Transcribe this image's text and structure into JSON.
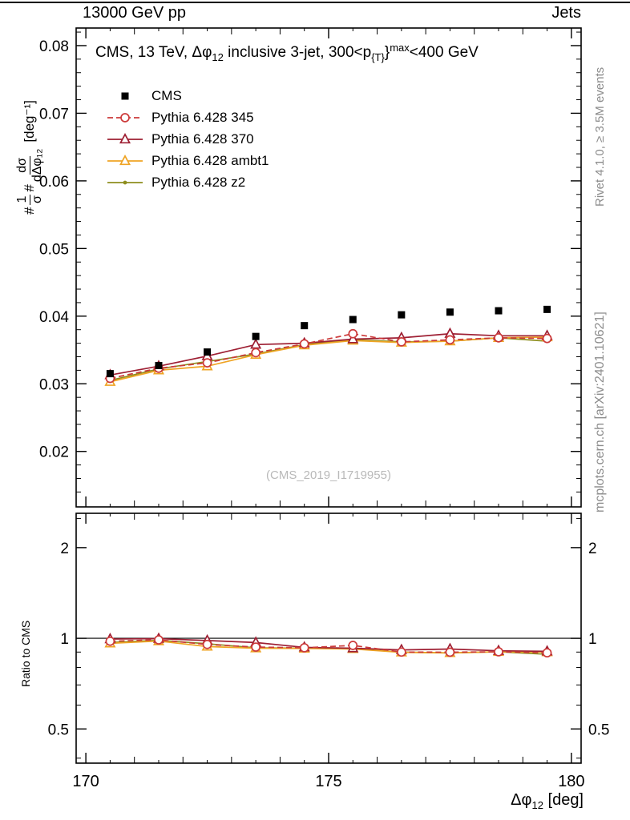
{
  "header": {
    "left": "13000 GeV pp",
    "right": "Jets"
  },
  "title": {
    "p1": "CMS, 13 TeV, ",
    "p2": "Δφ",
    "sub1": "12",
    "p3": " inclusive 3-jet, 300<p",
    "sub2": "{T}",
    "p4": "}",
    "sup": "max",
    "p5": "<400 GeV"
  },
  "ylabel": {
    "hash1": "#",
    "f1num": "1",
    "f1den": "σ",
    "hash2": "#",
    "f2num": "dσ",
    "f2den": "dΔφ₁₂",
    "unit": "[deg⁻¹]"
  },
  "xlabel": {
    "main": "Δφ",
    "sub": "12",
    "unit": " [deg]"
  },
  "ratio_label": "Ratio to CMS",
  "watermark": "(CMS_2019_I1719955)",
  "side": {
    "rivet": "Rivet 4.1.0, ≥ 3.5M events",
    "mcplots": "mcplots.cern.ch [arXiv:2401.10621]"
  },
  "chart_data": {
    "type": "line",
    "title": "CMS, 13 TeV, Δφ12 inclusive 3-jet, 300<pT^max<400 GeV",
    "xlabel": "Δφ12 [deg]",
    "ylabel": "1/σ dσ/dΔφ12 [deg⁻¹]",
    "xlim": [
      169.8,
      180.2
    ],
    "xticks": [
      170,
      175,
      180
    ],
    "xtick_labels": [
      "170",
      "175",
      "180"
    ],
    "x": [
      170.5,
      171.5,
      172.5,
      173.5,
      174.5,
      175.5,
      176.5,
      177.5,
      178.5,
      179.5
    ],
    "main": {
      "ylim": [
        0.0118,
        0.0826
      ],
      "yticks": [
        0.02,
        0.03,
        0.04,
        0.05,
        0.06,
        0.07,
        0.08
      ],
      "ytick_labels": [
        "0.02",
        "0.03",
        "0.04",
        "0.05",
        "0.06",
        "0.07",
        "0.08"
      ],
      "series": [
        {
          "name": "CMS",
          "marker": "square-filled",
          "color": "#000000",
          "values": [
            0.0315,
            0.0327,
            0.0347,
            0.037,
            0.0386,
            0.0395,
            0.0402,
            0.0406,
            0.0408,
            0.041
          ]
        },
        {
          "name": "Pythia 6.428 345",
          "marker": "circle-open",
          "color": "#cc3a3a",
          "dash": "7,4",
          "values": [
            0.0308,
            0.0323,
            0.0331,
            0.0346,
            0.0359,
            0.0374,
            0.0362,
            0.0365,
            0.0368,
            0.0367
          ]
        },
        {
          "name": "Pythia 6.428 370",
          "marker": "triangle-open",
          "color": "#9e1f33",
          "values": [
            0.0313,
            0.0326,
            0.0341,
            0.0358,
            0.036,
            0.0366,
            0.0368,
            0.0374,
            0.0371,
            0.0371
          ]
        },
        {
          "name": "Pythia 6.428 ambt1",
          "marker": "triangle-open",
          "color": "#efa424",
          "values": [
            0.0303,
            0.032,
            0.0326,
            0.0343,
            0.0357,
            0.0364,
            0.0361,
            0.0363,
            0.0368,
            0.0369
          ]
        },
        {
          "name": "Pythia 6.428 z2",
          "marker": "dot",
          "color": "#8e8e1e",
          "values": [
            0.0305,
            0.0322,
            0.0333,
            0.0344,
            0.0358,
            0.0365,
            0.0362,
            0.0363,
            0.0368,
            0.0363
          ]
        }
      ]
    },
    "ratio": {
      "scale": "log",
      "ylim": [
        0.385,
        2.6
      ],
      "yticks": [
        0.5,
        1,
        2
      ],
      "ytick_labels": [
        "0.5",
        "1",
        "2"
      ],
      "series": [
        {
          "name": "Pythia 6.428 345",
          "marker": "circle-open",
          "color": "#cc3a3a",
          "dash": "7,4",
          "values": [
            0.978,
            0.988,
            0.954,
            0.935,
            0.93,
            0.947,
            0.9,
            0.899,
            0.902,
            0.895
          ]
        },
        {
          "name": "Pythia 6.428 370",
          "marker": "triangle-open",
          "color": "#9e1f33",
          "values": [
            0.994,
            0.997,
            0.983,
            0.968,
            0.933,
            0.927,
            0.915,
            0.921,
            0.909,
            0.905
          ]
        },
        {
          "name": "Pythia 6.428 ambt1",
          "marker": "triangle-open",
          "color": "#efa424",
          "values": [
            0.962,
            0.979,
            0.939,
            0.927,
            0.925,
            0.922,
            0.898,
            0.894,
            0.902,
            0.9
          ]
        },
        {
          "name": "Pythia 6.428 z2",
          "marker": "dot",
          "color": "#8e8e1e",
          "values": [
            0.968,
            0.985,
            0.959,
            0.93,
            0.927,
            0.924,
            0.9,
            0.894,
            0.902,
            0.885
          ]
        }
      ]
    }
  }
}
